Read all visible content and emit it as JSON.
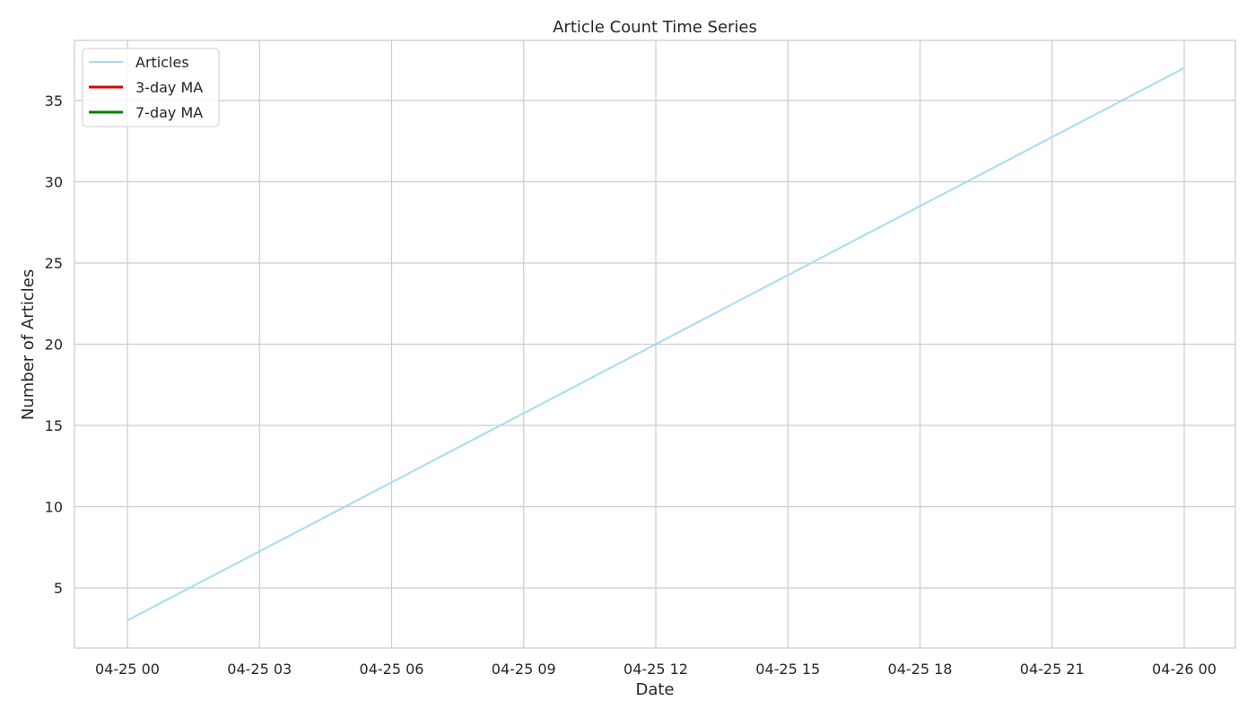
{
  "chart_data": {
    "type": "line",
    "title": "Article Count Time Series",
    "xlabel": "Date",
    "ylabel": "Number of Articles",
    "x_ticks": [
      "04-25 00",
      "04-25 03",
      "04-25 06",
      "04-25 09",
      "04-25 12",
      "04-25 15",
      "04-25 18",
      "04-25 21",
      "04-26 00"
    ],
    "y_ticks": [
      5,
      10,
      15,
      20,
      25,
      30,
      35
    ],
    "ylim": [
      1.3,
      38.7
    ],
    "grid": true,
    "legend_position": "top-left",
    "series": [
      {
        "name": "Articles",
        "color": "#a6dcef",
        "points": [
          [
            "04-25 00",
            3
          ],
          [
            "04-26 00",
            37
          ]
        ]
      },
      {
        "name": "3-day MA",
        "color": "#e00000",
        "points": []
      },
      {
        "name": "7-day MA",
        "color": "#008000",
        "points": []
      }
    ],
    "colors": {
      "grid": "#cccccc",
      "axes_edge": "#cccccc",
      "text": "#262626"
    }
  }
}
